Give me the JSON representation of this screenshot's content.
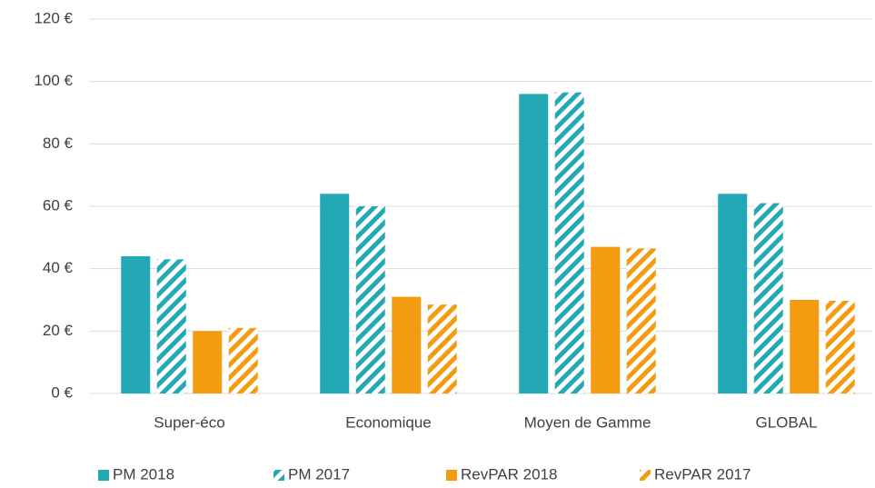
{
  "chart_data": {
    "type": "bar",
    "categories": [
      "Super-éco",
      "Economique",
      "Moyen de Gamme",
      "GLOBAL"
    ],
    "series": [
      {
        "name": "PM 2018",
        "color": "#23a8b5",
        "hatch": false,
        "values": [
          44,
          64,
          96,
          64
        ]
      },
      {
        "name": "PM 2017",
        "color": "#23a8b5",
        "hatch": true,
        "values": [
          43,
          60,
          96.5,
          61
        ]
      },
      {
        "name": "RevPAR 2018",
        "color": "#f39c12",
        "hatch": false,
        "values": [
          20,
          31,
          47,
          30
        ]
      },
      {
        "name": "RevPAR 2017",
        "color": "#f39c12",
        "hatch": true,
        "values": [
          21,
          28.5,
          46.5,
          29.7
        ]
      }
    ],
    "ylim": [
      0,
      120
    ],
    "yticks": [
      {
        "value": 0,
        "label": "0 €"
      },
      {
        "value": 20,
        "label": "20 €"
      },
      {
        "value": 40,
        "label": "40 €"
      },
      {
        "value": 60,
        "label": "60 €"
      },
      {
        "value": 80,
        "label": "80 €"
      },
      {
        "value": 100,
        "label": "100 €"
      },
      {
        "value": 120,
        "label": "120 €"
      }
    ],
    "grid": true,
    "legend": "bottom"
  }
}
